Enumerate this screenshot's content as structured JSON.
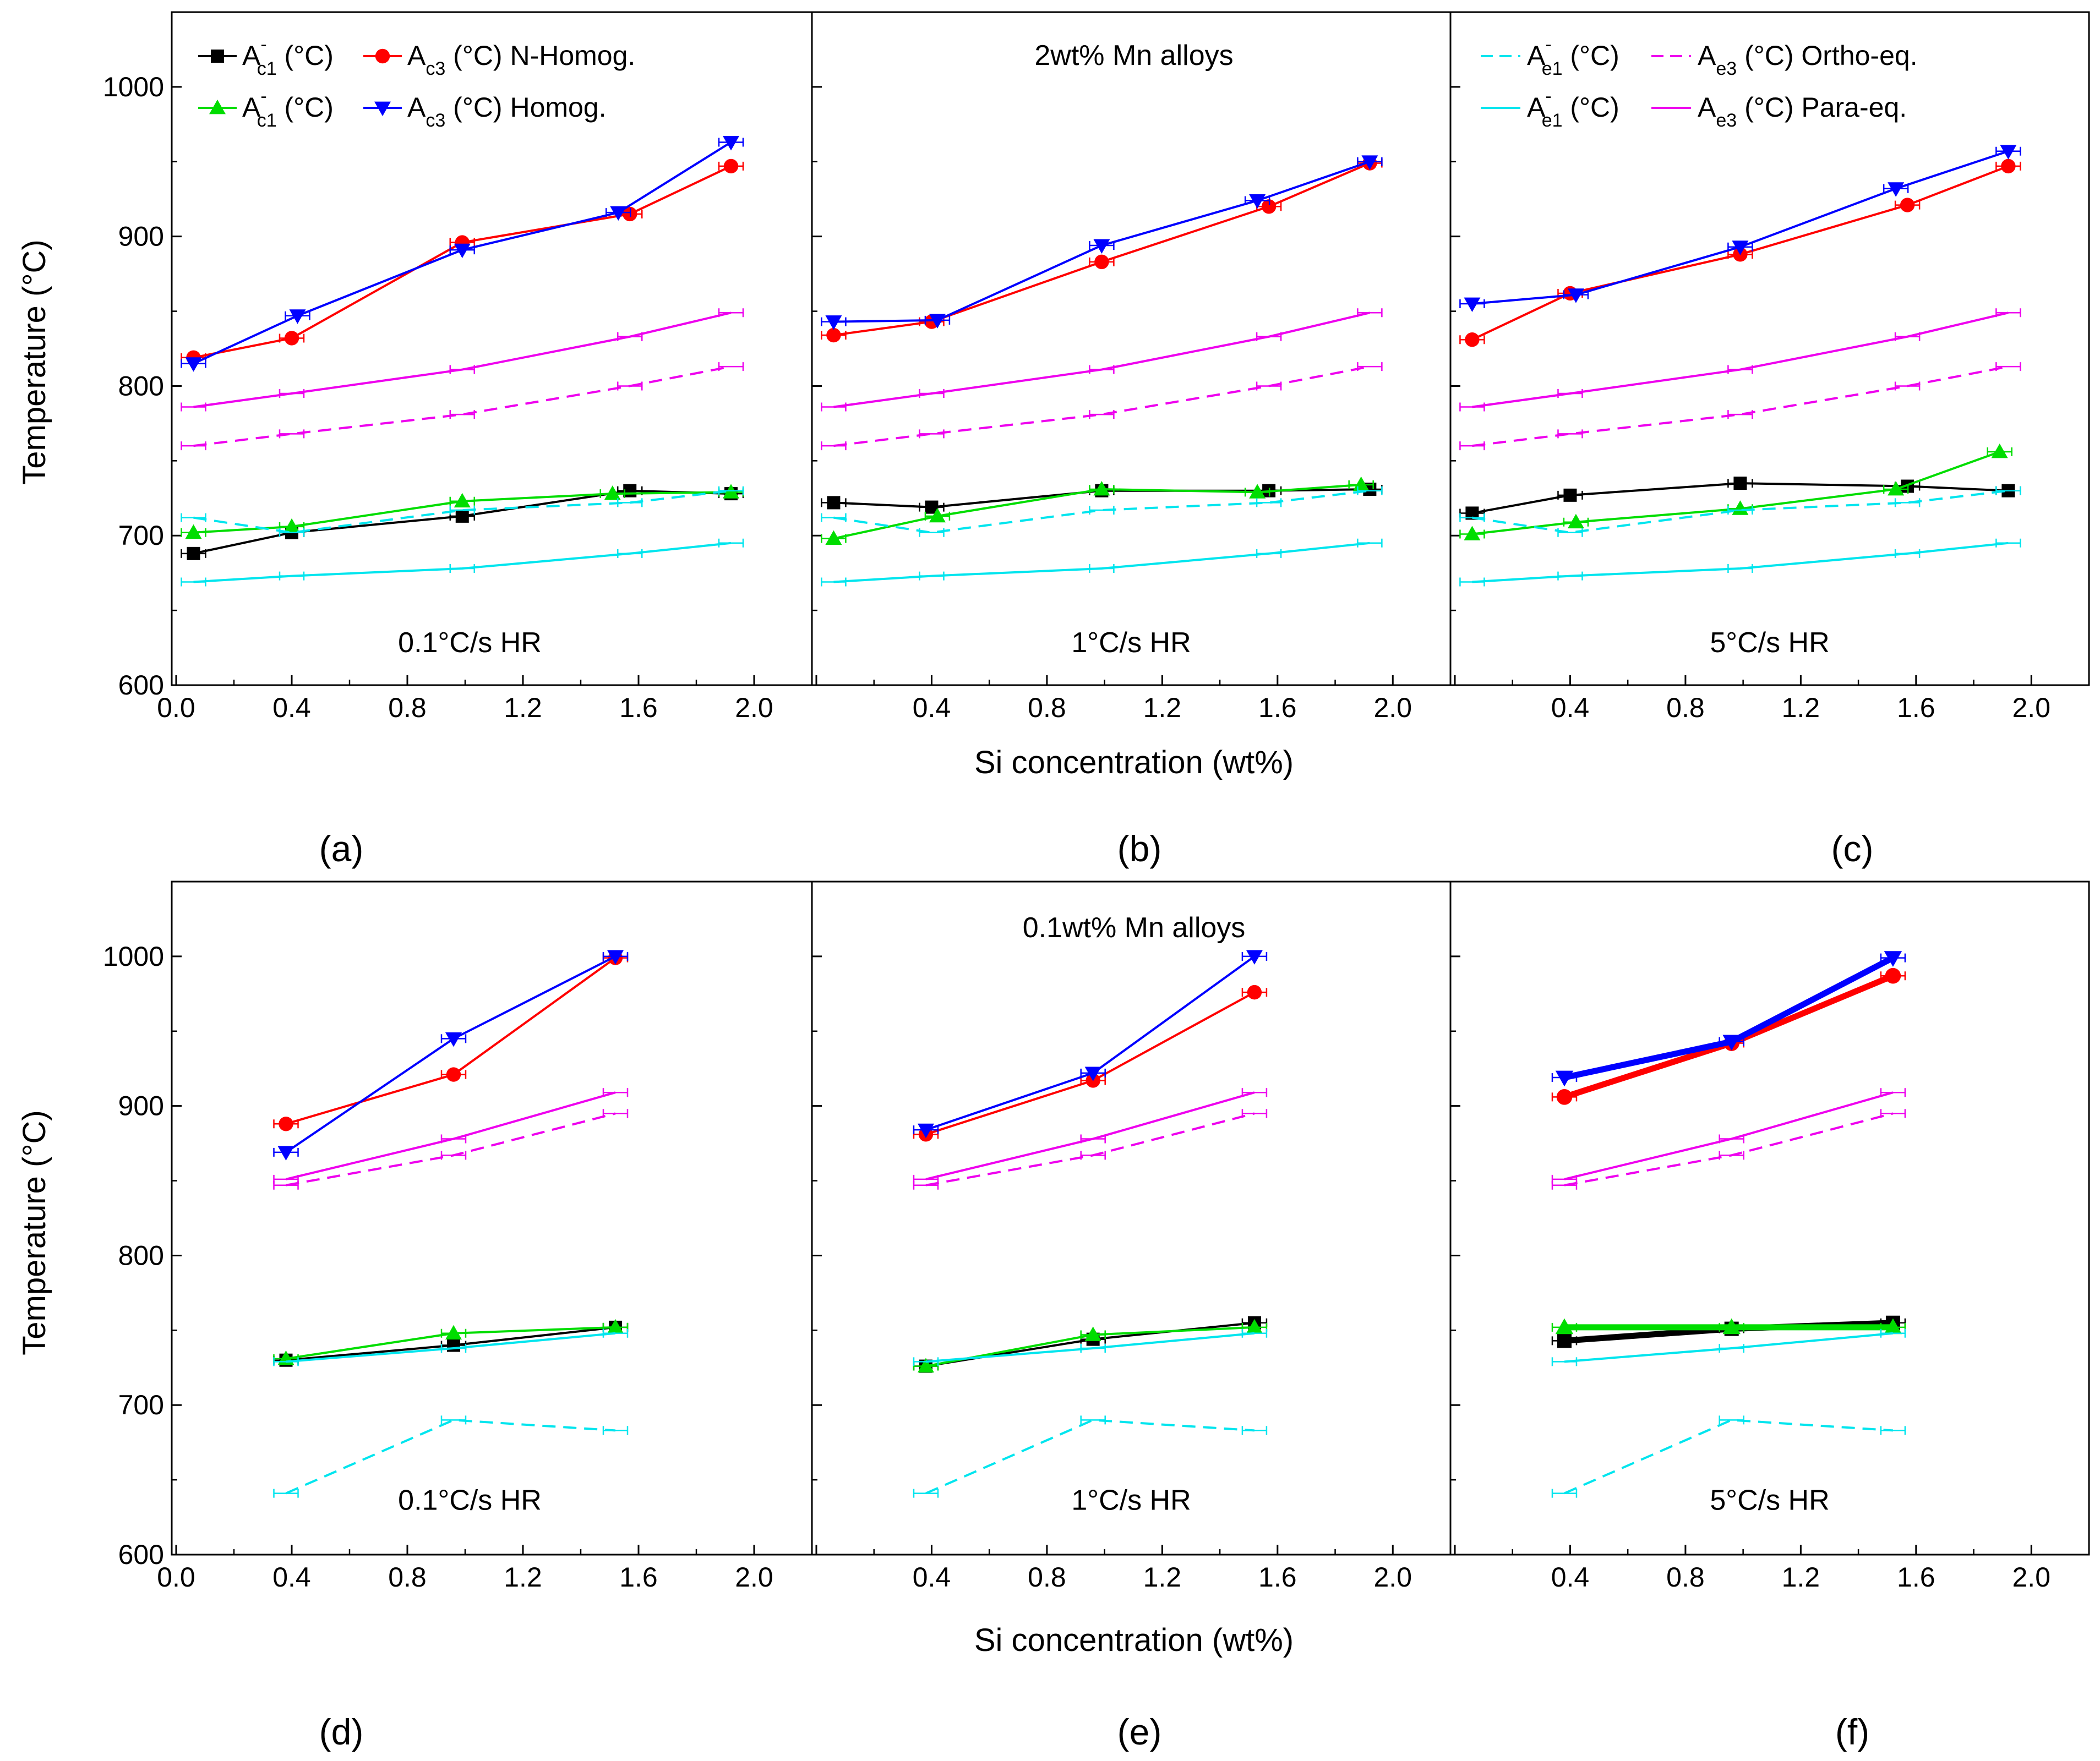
{
  "figure": {
    "ylabel": "Temperature (°C)",
    "xlabel": "Si concentration (wt%)",
    "x_ticks": [
      "0.0",
      "0.4",
      "0.8",
      "1.2",
      "1.6",
      "2.0"
    ],
    "y_ticks": [
      "600",
      "700",
      "800",
      "900",
      "1000"
    ],
    "row_titles": [
      "2wt% Mn alloys",
      "0.1wt% Mn alloys"
    ],
    "panel_letters": [
      "(a)",
      "(b)",
      "(c)",
      "(d)",
      "(e)",
      "(f)"
    ],
    "hr_labels": [
      "0.1°C/s HR",
      "1°C/s HR",
      "5°C/s HR"
    ]
  },
  "legend_left": [
    {
      "base": "A",
      "sup": "-",
      "sub": "c1",
      "unit": " (°C)",
      "color": "#000000",
      "marker": "square"
    },
    {
      "base": "A",
      "sup": "",
      "sub": "c3",
      "unit": " (°C) N-Homog.",
      "color": "#ff0000",
      "marker": "circle"
    },
    {
      "base": "A",
      "sup": "-",
      "sub": "c1",
      "unit": " (°C)",
      "color": "#00dd00",
      "marker": "triangle-up"
    },
    {
      "base": "A",
      "sup": "",
      "sub": "c3",
      "unit": " (°C) Homog.",
      "color": "#0000ff",
      "marker": "triangle-down"
    }
  ],
  "legend_right": [
    {
      "base": "A",
      "sup": "-",
      "sub": "e1",
      "unit": " (°C)",
      "color": "#00e5ee",
      "dash": true
    },
    {
      "base": "A",
      "sup": "",
      "sub": "e3",
      "unit": " (°C) Ortho-eq.",
      "color": "#ee00ee",
      "dash": true
    },
    {
      "base": "A",
      "sup": "-",
      "sub": "e1",
      "unit": " (°C)",
      "color": "#00e5ee",
      "dash": false
    },
    {
      "base": "A",
      "sup": "",
      "sub": "e3",
      "unit": " (°C)  Para-eq.",
      "color": "#ee00ee",
      "dash": false
    }
  ],
  "chart_data": [
    {
      "type": "line",
      "panel": "(a)",
      "subtitle": "0.1°C/s HR",
      "xlim": [
        0,
        2.2
      ],
      "ylim": [
        600,
        1050
      ],
      "series": [
        {
          "name": "Ac1 black",
          "color": "#000000",
          "marker": "square",
          "x": [
            0.06,
            0.4,
            0.99,
            1.57,
            1.92
          ],
          "y": [
            688,
            702,
            713,
            730,
            728
          ]
        },
        {
          "name": "Ac3 N-Homog.",
          "color": "#ff0000",
          "marker": "circle",
          "x": [
            0.06,
            0.4,
            0.99,
            1.57,
            1.92
          ],
          "y": [
            819,
            832,
            896,
            915,
            947
          ]
        },
        {
          "name": "Ac1 green",
          "color": "#00dd00",
          "marker": "triangle-up",
          "x": [
            0.06,
            0.4,
            0.99,
            1.51,
            1.92
          ],
          "y": [
            702,
            706,
            723,
            728,
            729
          ]
        },
        {
          "name": "Ac3 Homog.",
          "color": "#0000ff",
          "marker": "triangle-down",
          "x": [
            0.06,
            0.42,
            0.99,
            1.53,
            1.92
          ],
          "y": [
            815,
            847,
            891,
            916,
            963
          ]
        },
        {
          "name": "Ae1 Ortho-eq.",
          "color": "#00e5ee",
          "dash": true,
          "x": [
            0.06,
            0.4,
            0.99,
            1.57,
            1.92
          ],
          "y": [
            712,
            702,
            717,
            722,
            730
          ]
        },
        {
          "name": "Ae3 Ortho-eq.",
          "color": "#ee00ee",
          "dash": true,
          "x": [
            0.06,
            0.4,
            0.99,
            1.57,
            1.92
          ],
          "y": [
            760,
            768,
            781,
            800,
            813
          ]
        },
        {
          "name": "Ae1 Para-eq.",
          "color": "#00e5ee",
          "x": [
            0.06,
            0.4,
            0.99,
            1.57,
            1.92
          ],
          "y": [
            669,
            673,
            678,
            688,
            695
          ]
        },
        {
          "name": "Ae3 Para-eq.",
          "color": "#ee00ee",
          "x": [
            0.06,
            0.4,
            0.99,
            1.57,
            1.92
          ],
          "y": [
            786,
            795,
            811,
            833,
            849
          ]
        }
      ]
    },
    {
      "type": "line",
      "panel": "(b)",
      "subtitle": "1°C/s HR",
      "xlim": [
        0,
        2.2
      ],
      "ylim": [
        600,
        1050
      ],
      "series": [
        {
          "name": "Ac1 black",
          "color": "#000000",
          "marker": "square",
          "x": [
            0.06,
            0.4,
            0.99,
            1.57,
            1.92
          ],
          "y": [
            722,
            719,
            730,
            730,
            731
          ]
        },
        {
          "name": "Ac3 N-Homog.",
          "color": "#ff0000",
          "marker": "circle",
          "x": [
            0.06,
            0.4,
            0.99,
            1.57,
            1.92
          ],
          "y": [
            834,
            843,
            883,
            920,
            949
          ]
        },
        {
          "name": "Ac1 green",
          "color": "#00dd00",
          "marker": "triangle-up",
          "x": [
            0.06,
            0.42,
            0.99,
            1.53,
            1.89
          ],
          "y": [
            698,
            713,
            731,
            729,
            734
          ]
        },
        {
          "name": "Ac3 Homog.",
          "color": "#0000ff",
          "marker": "triangle-down",
          "x": [
            0.06,
            0.42,
            0.99,
            1.53,
            1.92
          ],
          "y": [
            843,
            844,
            894,
            924,
            950
          ]
        },
        {
          "name": "Ae1 Ortho-eq.",
          "color": "#00e5ee",
          "dash": true,
          "x": [
            0.06,
            0.4,
            0.99,
            1.57,
            1.92
          ],
          "y": [
            712,
            702,
            717,
            722,
            730
          ]
        },
        {
          "name": "Ae3 Ortho-eq.",
          "color": "#ee00ee",
          "dash": true,
          "x": [
            0.06,
            0.4,
            0.99,
            1.57,
            1.92
          ],
          "y": [
            760,
            768,
            781,
            800,
            813
          ]
        },
        {
          "name": "Ae1 Para-eq.",
          "color": "#00e5ee",
          "x": [
            0.06,
            0.4,
            0.99,
            1.57,
            1.92
          ],
          "y": [
            669,
            673,
            678,
            688,
            695
          ]
        },
        {
          "name": "Ae3 Para-eq.",
          "color": "#ee00ee",
          "x": [
            0.06,
            0.4,
            0.99,
            1.57,
            1.92
          ],
          "y": [
            786,
            795,
            811,
            833,
            849
          ]
        }
      ]
    },
    {
      "type": "line",
      "panel": "(c)",
      "subtitle": "5°C/s HR",
      "xlim": [
        0,
        2.2
      ],
      "ylim": [
        600,
        1050
      ],
      "series": [
        {
          "name": "Ac1 black",
          "color": "#000000",
          "marker": "square",
          "x": [
            0.06,
            0.4,
            0.99,
            1.57,
            1.92
          ],
          "y": [
            715,
            727,
            735,
            733,
            730
          ]
        },
        {
          "name": "Ac3 N-Homog.",
          "color": "#ff0000",
          "marker": "circle",
          "x": [
            0.06,
            0.4,
            0.99,
            1.57,
            1.92
          ],
          "y": [
            831,
            862,
            888,
            921,
            947
          ]
        },
        {
          "name": "Ac1 green",
          "color": "#00dd00",
          "marker": "triangle-up",
          "x": [
            0.06,
            0.42,
            0.99,
            1.53,
            1.89
          ],
          "y": [
            701,
            709,
            718,
            731,
            756
          ]
        },
        {
          "name": "Ac3 Homog.",
          "color": "#0000ff",
          "marker": "triangle-down",
          "x": [
            0.06,
            0.42,
            0.99,
            1.53,
            1.92
          ],
          "y": [
            855,
            861,
            893,
            932,
            957
          ]
        },
        {
          "name": "Ae1 Ortho-eq.",
          "color": "#00e5ee",
          "dash": true,
          "x": [
            0.06,
            0.4,
            0.99,
            1.57,
            1.92
          ],
          "y": [
            712,
            702,
            717,
            722,
            730
          ]
        },
        {
          "name": "Ae3 Ortho-eq.",
          "color": "#ee00ee",
          "dash": true,
          "x": [
            0.06,
            0.4,
            0.99,
            1.57,
            1.92
          ],
          "y": [
            760,
            768,
            781,
            800,
            813
          ]
        },
        {
          "name": "Ae1 Para-eq.",
          "color": "#00e5ee",
          "x": [
            0.06,
            0.4,
            0.99,
            1.57,
            1.92
          ],
          "y": [
            669,
            673,
            678,
            688,
            695
          ]
        },
        {
          "name": "Ae3 Para-eq.",
          "color": "#ee00ee",
          "x": [
            0.06,
            0.4,
            0.99,
            1.57,
            1.92
          ],
          "y": [
            786,
            795,
            811,
            833,
            849
          ]
        }
      ]
    },
    {
      "type": "line",
      "panel": "(d)",
      "subtitle": "0.1°C/s HR",
      "xlim": [
        0,
        2.2
      ],
      "ylim": [
        600,
        1050
      ],
      "series": [
        {
          "name": "Ac1 black",
          "color": "#000000",
          "marker": "square",
          "x": [
            0.38,
            0.96,
            1.52
          ],
          "y": [
            730,
            740,
            752
          ]
        },
        {
          "name": "Ac3 N-Homog.",
          "color": "#ff0000",
          "marker": "circle",
          "x": [
            0.38,
            0.96,
            1.52
          ],
          "y": [
            888,
            921,
            999
          ]
        },
        {
          "name": "Ac1 green",
          "color": "#00dd00",
          "marker": "triangle-up",
          "x": [
            0.38,
            0.96,
            1.52
          ],
          "y": [
            731,
            748,
            752
          ]
        },
        {
          "name": "Ac3 Homog.",
          "color": "#0000ff",
          "marker": "triangle-down",
          "x": [
            0.38,
            0.96,
            1.52
          ],
          "y": [
            869,
            945,
            1000
          ]
        },
        {
          "name": "Ae1 Ortho-eq.",
          "color": "#00e5ee",
          "dash": true,
          "x": [
            0.38,
            0.96,
            1.52
          ],
          "y": [
            641,
            690,
            683
          ]
        },
        {
          "name": "Ae3 Ortho-eq.",
          "color": "#ee00ee",
          "dash": true,
          "x": [
            0.38,
            0.96,
            1.52
          ],
          "y": [
            847,
            867,
            895
          ]
        },
        {
          "name": "Ae1 Para-eq.",
          "color": "#00e5ee",
          "x": [
            0.38,
            0.96,
            1.52
          ],
          "y": [
            729,
            738,
            748
          ]
        },
        {
          "name": "Ae3 Para-eq.",
          "color": "#ee00ee",
          "x": [
            0.38,
            0.96,
            1.52
          ],
          "y": [
            851,
            878,
            909
          ]
        }
      ]
    },
    {
      "type": "line",
      "panel": "(e)",
      "subtitle": "1°C/s HR",
      "xlim": [
        0,
        2.2
      ],
      "ylim": [
        600,
        1050
      ],
      "series": [
        {
          "name": "Ac1 black",
          "color": "#000000",
          "marker": "square",
          "x": [
            0.38,
            0.96,
            1.52
          ],
          "y": [
            726,
            744,
            755
          ]
        },
        {
          "name": "Ac3 N-Homog.",
          "color": "#ff0000",
          "marker": "circle",
          "x": [
            0.38,
            0.96,
            1.52
          ],
          "y": [
            881,
            917,
            976
          ]
        },
        {
          "name": "Ac1 green",
          "color": "#00dd00",
          "marker": "triangle-up",
          "x": [
            0.38,
            0.96,
            1.52
          ],
          "y": [
            726,
            747,
            752
          ]
        },
        {
          "name": "Ac3 Homog.",
          "color": "#0000ff",
          "marker": "triangle-down",
          "x": [
            0.38,
            0.96,
            1.52
          ],
          "y": [
            884,
            922,
            1000
          ]
        },
        {
          "name": "Ae1 Ortho-eq.",
          "color": "#00e5ee",
          "dash": true,
          "x": [
            0.38,
            0.96,
            1.52
          ],
          "y": [
            641,
            690,
            683
          ]
        },
        {
          "name": "Ae3 Ortho-eq.",
          "color": "#ee00ee",
          "dash": true,
          "x": [
            0.38,
            0.96,
            1.52
          ],
          "y": [
            847,
            867,
            895
          ]
        },
        {
          "name": "Ae1 Para-eq.",
          "color": "#00e5ee",
          "x": [
            0.38,
            0.96,
            1.52
          ],
          "y": [
            729,
            738,
            748
          ]
        },
        {
          "name": "Ae3 Para-eq.",
          "color": "#ee00ee",
          "x": [
            0.38,
            0.96,
            1.52
          ],
          "y": [
            851,
            878,
            909
          ]
        }
      ]
    },
    {
      "type": "line",
      "panel": "(f)",
      "subtitle": "5°C/s HR",
      "xlim": [
        0,
        2.2
      ],
      "ylim": [
        600,
        1050
      ],
      "series": [
        {
          "name": "Ac1 black",
          "color": "#000000",
          "marker": "square",
          "thick": true,
          "x": [
            0.38,
            0.96,
            1.52
          ],
          "y": [
            743,
            751,
            755
          ]
        },
        {
          "name": "Ac3 N-Homog.",
          "color": "#ff0000",
          "marker": "circle",
          "thick": true,
          "x": [
            0.38,
            0.96,
            1.52
          ],
          "y": [
            906,
            942,
            987
          ]
        },
        {
          "name": "Ac1 green",
          "color": "#00dd00",
          "marker": "triangle-up",
          "thick": true,
          "x": [
            0.38,
            0.96,
            1.52
          ],
          "y": [
            752,
            752,
            752
          ]
        },
        {
          "name": "Ac3 Homog.",
          "color": "#0000ff",
          "marker": "triangle-down",
          "thick": true,
          "x": [
            0.38,
            0.96,
            1.52
          ],
          "y": [
            919,
            943,
            999
          ]
        },
        {
          "name": "Ae1 Ortho-eq.",
          "color": "#00e5ee",
          "dash": true,
          "x": [
            0.38,
            0.96,
            1.52
          ],
          "y": [
            641,
            690,
            683
          ]
        },
        {
          "name": "Ae3 Ortho-eq.",
          "color": "#ee00ee",
          "dash": true,
          "x": [
            0.38,
            0.96,
            1.52
          ],
          "y": [
            847,
            867,
            895
          ]
        },
        {
          "name": "Ae1 Para-eq.",
          "color": "#00e5ee",
          "x": [
            0.38,
            0.96,
            1.52
          ],
          "y": [
            729,
            738,
            748
          ]
        },
        {
          "name": "Ae3 Para-eq.",
          "color": "#ee00ee",
          "x": [
            0.38,
            0.96,
            1.52
          ],
          "y": [
            851,
            878,
            909
          ]
        }
      ]
    }
  ]
}
